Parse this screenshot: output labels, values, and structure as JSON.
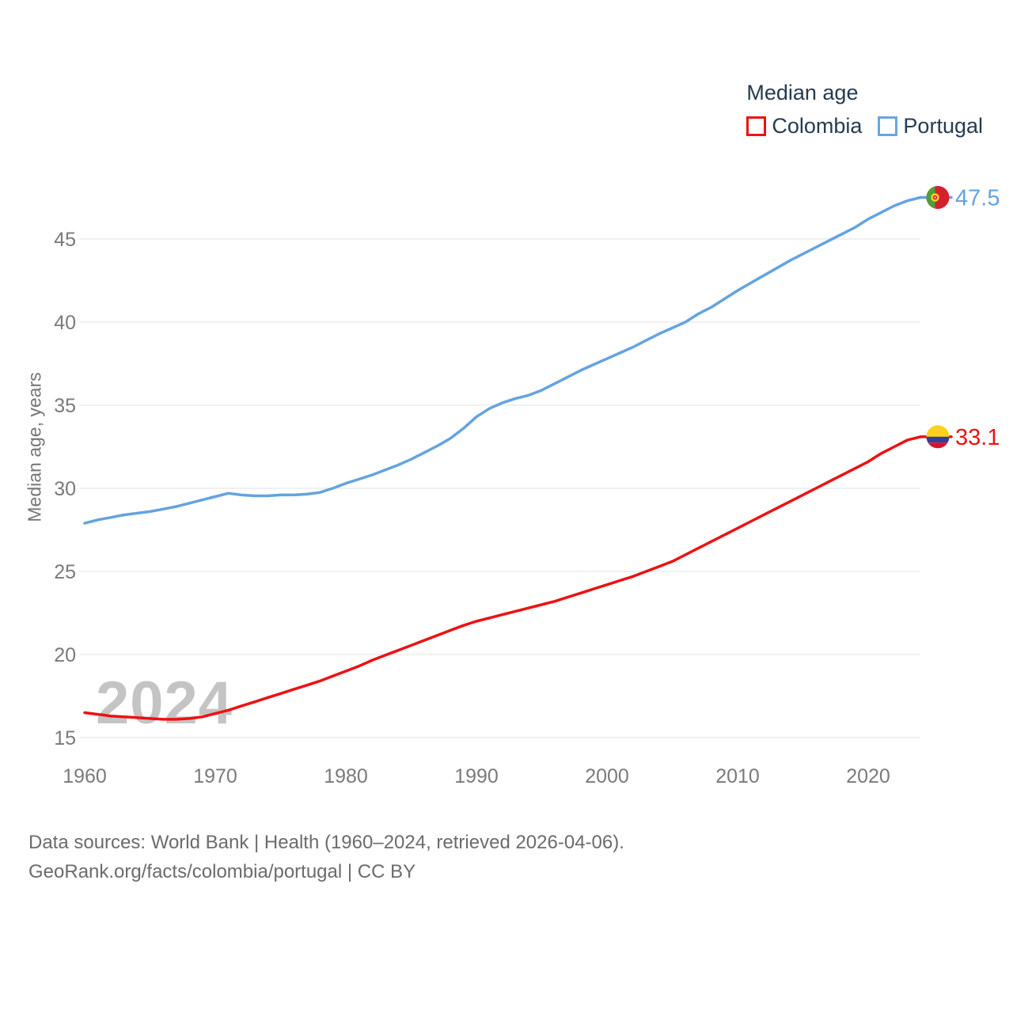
{
  "legend": {
    "title": "Median age",
    "items": [
      {
        "label": "Colombia",
        "color": "#ee1111"
      },
      {
        "label": "Portugal",
        "color": "#6aa5e2"
      }
    ]
  },
  "footer": {
    "line1": "Data sources: World Bank | Health (1960–2024, retrieved 2026-04-06).",
    "line2": "GeoRank.org/facts/colombia/portugal | CC BY"
  },
  "chart_data": {
    "type": "line",
    "title": "Median age",
    "xlabel": "",
    "ylabel": "Median age, years",
    "watermark": "2024",
    "grid": "horizontal",
    "legend_position": "top-right",
    "x_range": [
      1960,
      2024
    ],
    "ylim": [
      15,
      48
    ],
    "xticks": [
      1960,
      1970,
      1980,
      1990,
      2000,
      2010,
      2020
    ],
    "yticks": [
      15,
      20,
      25,
      30,
      35,
      40,
      45
    ],
    "x": [
      1960,
      1961,
      1962,
      1963,
      1964,
      1965,
      1966,
      1967,
      1968,
      1969,
      1970,
      1971,
      1972,
      1973,
      1974,
      1975,
      1976,
      1977,
      1978,
      1979,
      1980,
      1981,
      1982,
      1983,
      1984,
      1985,
      1986,
      1987,
      1988,
      1989,
      1990,
      1991,
      1992,
      1993,
      1994,
      1995,
      1996,
      1997,
      1998,
      1999,
      2000,
      2001,
      2002,
      2003,
      2004,
      2005,
      2006,
      2007,
      2008,
      2009,
      2010,
      2011,
      2012,
      2013,
      2014,
      2015,
      2016,
      2017,
      2018,
      2019,
      2020,
      2021,
      2022,
      2023,
      2024
    ],
    "series": [
      {
        "name": "Colombia",
        "color": "#ee1111",
        "end_label": "33.1",
        "end_value": 33.1,
        "flag": "colombia",
        "values": [
          16.5,
          16.4,
          16.3,
          16.25,
          16.2,
          16.15,
          16.1,
          16.1,
          16.15,
          16.25,
          16.45,
          16.65,
          16.9,
          17.15,
          17.4,
          17.65,
          17.9,
          18.15,
          18.4,
          18.7,
          19.0,
          19.3,
          19.65,
          19.95,
          20.25,
          20.55,
          20.85,
          21.15,
          21.45,
          21.75,
          22.0,
          22.2,
          22.4,
          22.6,
          22.8,
          23.0,
          23.2,
          23.45,
          23.7,
          23.95,
          24.2,
          24.45,
          24.7,
          25.0,
          25.3,
          25.6,
          26.0,
          26.4,
          26.8,
          27.2,
          27.6,
          28.0,
          28.4,
          28.8,
          29.2,
          29.6,
          30.0,
          30.4,
          30.8,
          31.2,
          31.6,
          32.1,
          32.5,
          32.9,
          33.1
        ]
      },
      {
        "name": "Portugal",
        "color": "#64a3e0",
        "end_label": "47.5",
        "end_value": 47.5,
        "flag": "portugal",
        "values": [
          27.9,
          28.1,
          28.25,
          28.4,
          28.5,
          28.6,
          28.75,
          28.9,
          29.1,
          29.3,
          29.5,
          29.7,
          29.6,
          29.55,
          29.55,
          29.6,
          29.6,
          29.65,
          29.75,
          30.0,
          30.3,
          30.55,
          30.8,
          31.1,
          31.4,
          31.75,
          32.15,
          32.55,
          33.0,
          33.6,
          34.3,
          34.8,
          35.15,
          35.4,
          35.6,
          35.9,
          36.3,
          36.7,
          37.1,
          37.45,
          37.8,
          38.15,
          38.5,
          38.9,
          39.3,
          39.65,
          40.0,
          40.5,
          40.9,
          41.4,
          41.9,
          42.35,
          42.8,
          43.25,
          43.7,
          44.1,
          44.5,
          44.9,
          45.3,
          45.7,
          46.2,
          46.6,
          47.0,
          47.3,
          47.5
        ]
      }
    ]
  }
}
